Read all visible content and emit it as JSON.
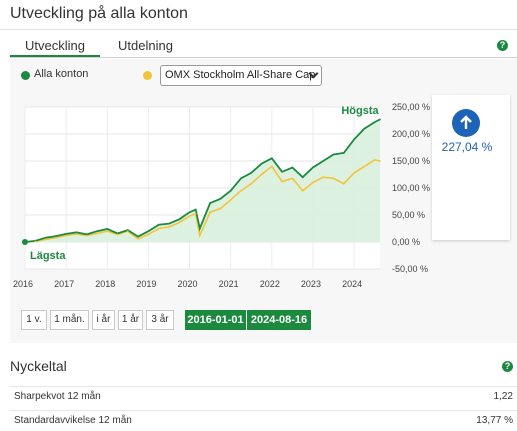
{
  "header": {
    "title": "Utveckling på alla konton"
  },
  "tabs": [
    {
      "label": "Utveckling",
      "active": true
    },
    {
      "label": "Utdelning",
      "active": false
    }
  ],
  "legend": {
    "series1": {
      "label": "Alla konton",
      "color": "#1b8a3e"
    },
    "series2": {
      "color": "#f2c43a"
    },
    "compare_select": {
      "value": "OMX Stockholm All-Share Cap"
    }
  },
  "summary": {
    "value": "227,04 %",
    "icon": "arrow-up-icon",
    "color": "#1d63b8"
  },
  "periods": [
    "1 v.",
    "1 mån.",
    "i år",
    "1 år",
    "3 år"
  ],
  "dates": {
    "from": "2016-01-01",
    "to": "2024-08-16"
  },
  "chart_data": {
    "type": "area",
    "xlabel": "",
    "ylabel": "",
    "x_ticks": [
      "2016",
      "2017",
      "2018",
      "2019",
      "2020",
      "2021",
      "2022",
      "2023",
      "2024"
    ],
    "y_ticks": [
      "250,00 %",
      "200,00 %",
      "150,00 %",
      "100,00 %",
      "50,00 %",
      "0,00 %",
      "-50,00 %"
    ],
    "ylim": [
      -50,
      250
    ],
    "annotations": {
      "high": "Högsta",
      "low": "Lägsta"
    },
    "series": [
      {
        "name": "Alla konton",
        "color": "#1b8a3e",
        "x": [
          2016.0,
          2016.25,
          2016.5,
          2016.75,
          2017.0,
          2017.25,
          2017.5,
          2017.75,
          2018.0,
          2018.25,
          2018.5,
          2018.75,
          2019.0,
          2019.25,
          2019.5,
          2019.75,
          2020.0,
          2020.15,
          2020.25,
          2020.5,
          2020.75,
          2021.0,
          2021.25,
          2021.5,
          2021.75,
          2022.0,
          2022.25,
          2022.5,
          2022.75,
          2023.0,
          2023.25,
          2023.5,
          2023.75,
          2024.0,
          2024.25,
          2024.5,
          2024.63
        ],
        "values": [
          0,
          2,
          8,
          11,
          15,
          18,
          14,
          20,
          24,
          16,
          22,
          10,
          20,
          32,
          34,
          42,
          55,
          60,
          25,
          72,
          80,
          95,
          118,
          128,
          145,
          155,
          130,
          138,
          120,
          138,
          150,
          162,
          165,
          190,
          210,
          222,
          227
        ]
      },
      {
        "name": "OMX Stockholm All-Share Cap",
        "color": "#f2c43a",
        "x": [
          2016.0,
          2016.25,
          2016.5,
          2016.75,
          2017.0,
          2017.25,
          2017.5,
          2017.75,
          2018.0,
          2018.25,
          2018.5,
          2018.75,
          2019.0,
          2019.25,
          2019.5,
          2019.75,
          2020.0,
          2020.15,
          2020.25,
          2020.5,
          2020.75,
          2021.0,
          2021.25,
          2021.5,
          2021.75,
          2022.0,
          2022.25,
          2022.5,
          2022.75,
          2023.0,
          2023.25,
          2023.5,
          2023.75,
          2024.0,
          2024.25,
          2024.5,
          2024.63
        ],
        "values": [
          0,
          1,
          5,
          8,
          12,
          15,
          12,
          16,
          20,
          14,
          20,
          6,
          14,
          25,
          28,
          36,
          48,
          52,
          12,
          55,
          62,
          78,
          95,
          108,
          125,
          140,
          112,
          118,
          95,
          110,
          120,
          118,
          108,
          128,
          140,
          152,
          150
        ]
      }
    ]
  },
  "nyckeltal": {
    "title": "Nyckeltal",
    "rows": [
      {
        "label": "Sharpekvot 12 mån",
        "value": "1,22"
      },
      {
        "label": "Standardavvikelse 12 mån",
        "value": "13,77 %"
      }
    ]
  }
}
